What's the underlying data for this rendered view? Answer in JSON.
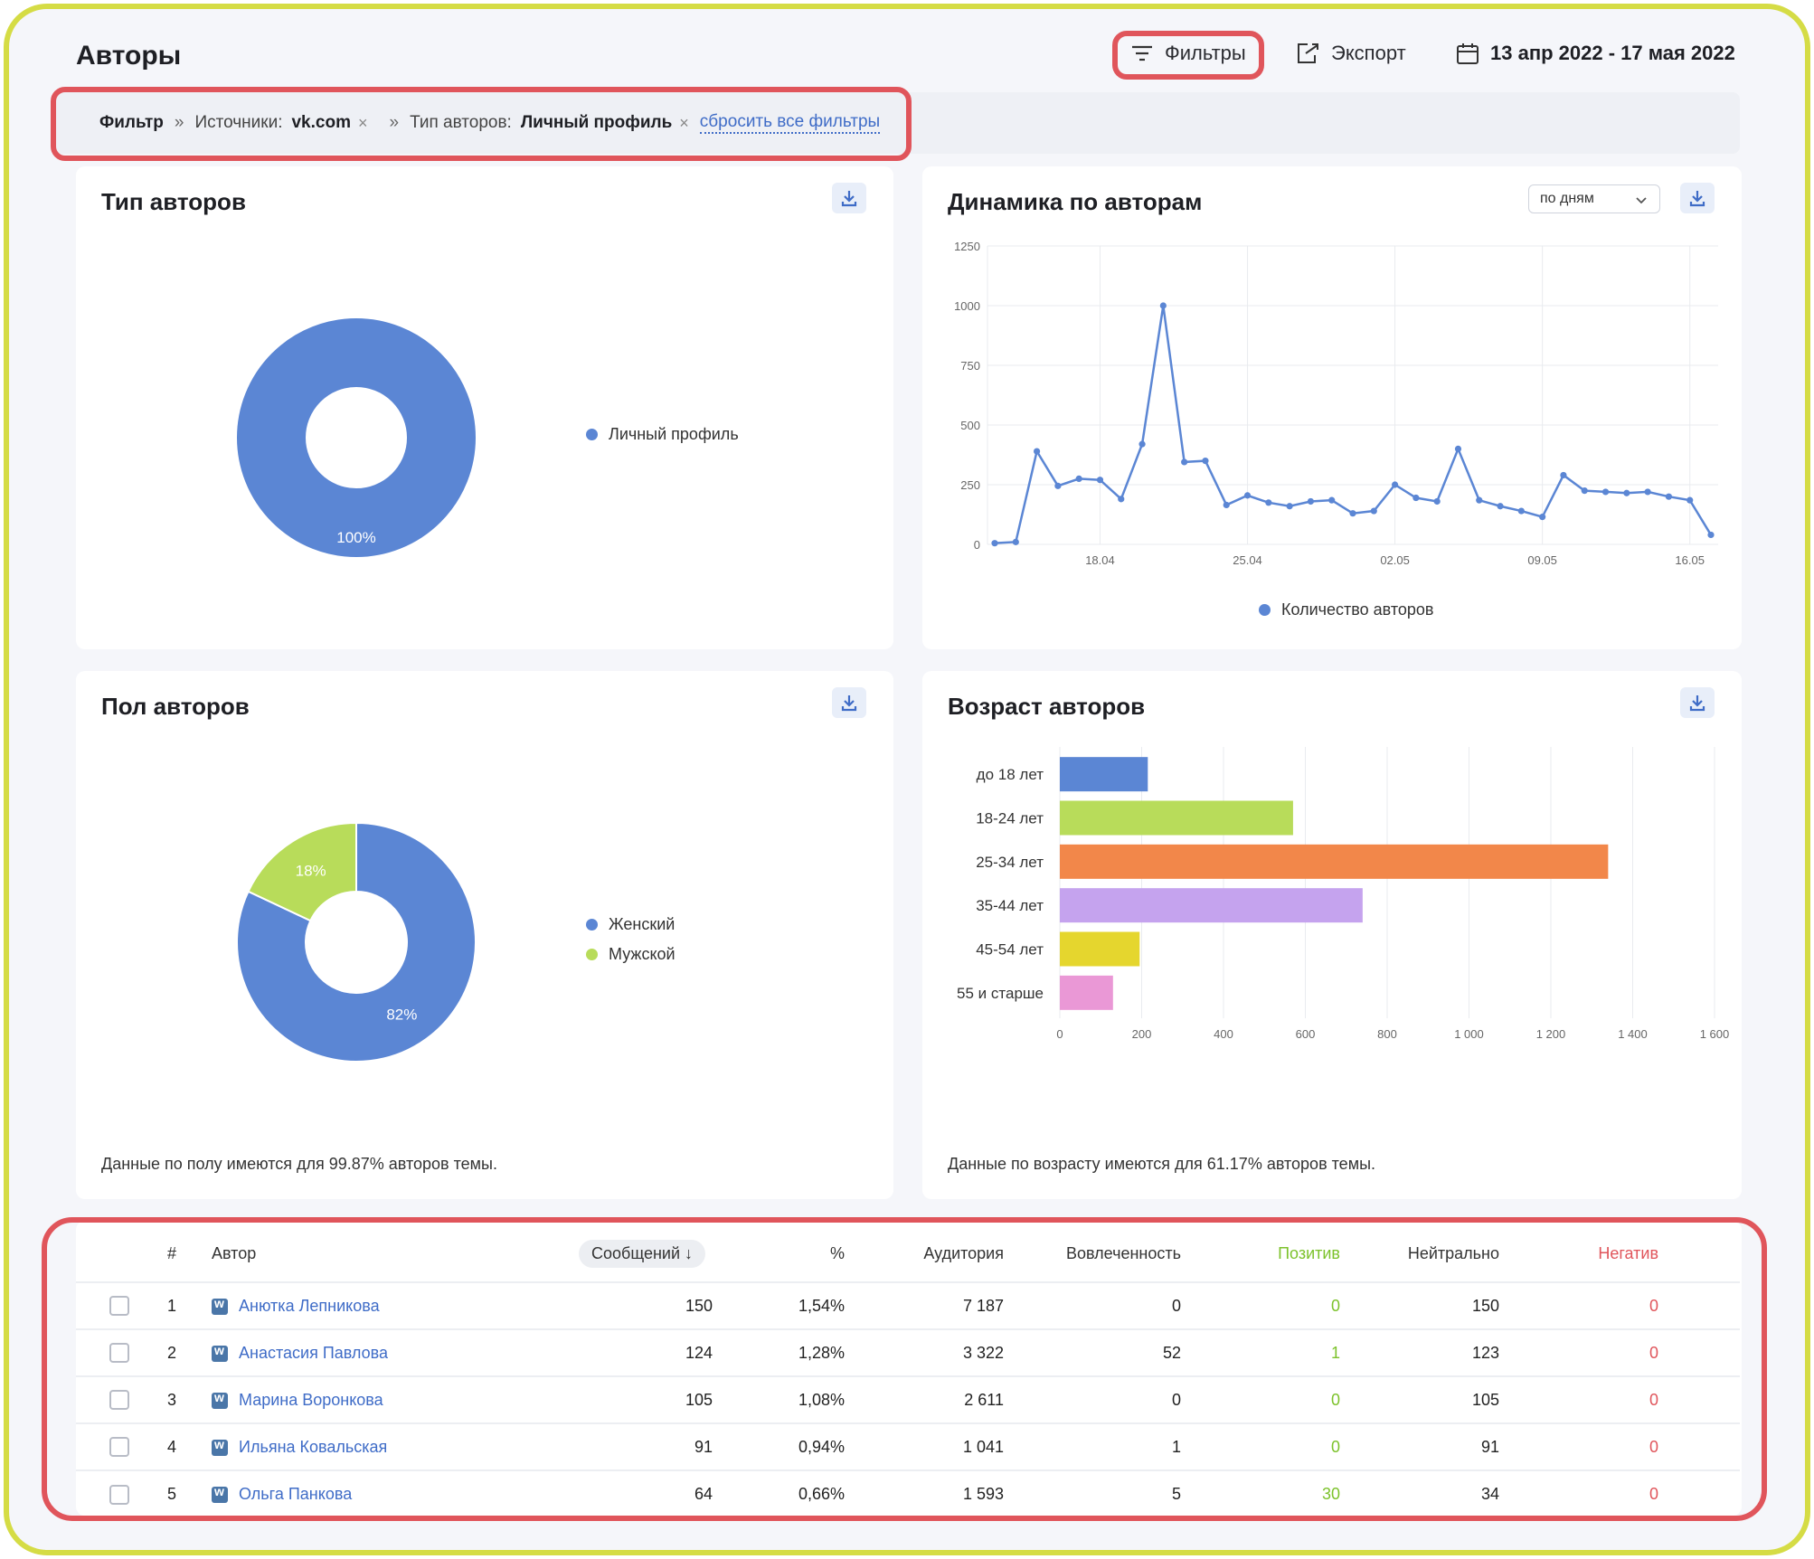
{
  "header": {
    "title": "Авторы",
    "filters_label": "Фильтры",
    "export_label": "Экспорт",
    "date_range": "13 апр 2022 - 17 мая 2022"
  },
  "filter_bar": {
    "filter_label": "Фильтр",
    "sep": "»",
    "sources_label": "Источники:",
    "sources_value": "vk.com",
    "author_type_label": "Тип авторов:",
    "author_type_value": "Личный профиль",
    "remove": "×",
    "reset_label": "сбросить все фильтры"
  },
  "colors": {
    "accent": "#3f6cc7",
    "highlight": "#e0555b",
    "frame": "#d5dc45",
    "positive": "#7cc22b",
    "negative": "#e0555b"
  },
  "cards": {
    "author_type": {
      "title": "Тип авторов"
    },
    "dynamics": {
      "title": "Динамика по авторам",
      "period_select": "по дням"
    },
    "gender": {
      "title": "Пол авторов",
      "note": "Данные по полу имеются для 99.87% авторов темы."
    },
    "age": {
      "title": "Возраст авторов",
      "note": "Данные по возрасту имеются для 61.17% авторов темы."
    }
  },
  "chart_data": [
    {
      "type": "pie",
      "title": "Тип авторов",
      "labels": [
        "Личный профиль"
      ],
      "values": [
        100
      ],
      "value_labels": [
        "100%"
      ],
      "colors": [
        "#5b86d4"
      ]
    },
    {
      "type": "line",
      "title": "Динамика по авторам",
      "series": [
        {
          "name": "Количество авторов",
          "color": "#5b86d4",
          "values": [
            5,
            10,
            390,
            245,
            275,
            270,
            190,
            420,
            1000,
            345,
            350,
            165,
            205,
            175,
            160,
            180,
            185,
            130,
            140,
            250,
            195,
            180,
            400,
            185,
            160,
            140,
            115,
            290,
            225,
            220,
            215,
            220,
            200,
            185,
            40
          ]
        }
      ],
      "x_tick_labels": [
        "18.04",
        "25.04",
        "02.05",
        "09.05",
        "16.05"
      ],
      "x_tick_indices": [
        5,
        12,
        19,
        26,
        33
      ],
      "y_ticks": [
        "0",
        "250",
        "500",
        "750",
        "1000",
        "1250"
      ],
      "ylim": [
        0,
        1250
      ],
      "grid": true,
      "legend": "bottom"
    },
    {
      "type": "pie",
      "title": "Пол авторов",
      "labels": [
        "Женский",
        "Мужской"
      ],
      "values": [
        82,
        18
      ],
      "value_labels": [
        "82%",
        "18%"
      ],
      "colors": [
        "#5b86d4",
        "#b8dc5a"
      ]
    },
    {
      "type": "bar",
      "orientation": "horizontal",
      "title": "Возраст авторов",
      "categories": [
        "до 18 лет",
        "18-24 лет",
        "25-34 лет",
        "35-44 лет",
        "45-54 лет",
        "55 и старше"
      ],
      "values": [
        215,
        570,
        1340,
        740,
        195,
        130
      ],
      "colors": [
        "#5b86d4",
        "#b8dc5a",
        "#f2874a",
        "#c5a3ee",
        "#e5d62e",
        "#ea98d6"
      ],
      "x_ticks": [
        "0",
        "200",
        "400",
        "600",
        "800",
        "1 000",
        "1 200",
        "1 400",
        "1 600"
      ],
      "xlim": [
        0,
        1600
      ],
      "grid": true
    }
  ],
  "table": {
    "headers": {
      "num": "#",
      "author": "Автор",
      "messages": "Сообщений ↓",
      "percent": "%",
      "audience": "Аудитория",
      "engagement": "Вовлеченность",
      "positive": "Позитив",
      "neutral": "Нейтрально",
      "negative": "Негатив"
    },
    "rows": [
      {
        "num": "1",
        "author": "Анютка Лепникова",
        "messages": "150",
        "percent": "1,54%",
        "audience": "7 187",
        "engagement": "0",
        "positive": "0",
        "neutral": "150",
        "negative": "0"
      },
      {
        "num": "2",
        "author": "Анастасия Павлова",
        "messages": "124",
        "percent": "1,28%",
        "audience": "3 322",
        "engagement": "52",
        "positive": "1",
        "neutral": "123",
        "negative": "0"
      },
      {
        "num": "3",
        "author": "Марина Воронкова",
        "messages": "105",
        "percent": "1,08%",
        "audience": "2 611",
        "engagement": "0",
        "positive": "0",
        "neutral": "105",
        "negative": "0"
      },
      {
        "num": "4",
        "author": "Ильяна Ковальская",
        "messages": "91",
        "percent": "0,94%",
        "audience": "1 041",
        "engagement": "1",
        "positive": "0",
        "neutral": "91",
        "negative": "0"
      },
      {
        "num": "5",
        "author": "Ольга Панкова",
        "messages": "64",
        "percent": "0,66%",
        "audience": "1 593",
        "engagement": "5",
        "positive": "30",
        "neutral": "34",
        "negative": "0"
      }
    ]
  }
}
